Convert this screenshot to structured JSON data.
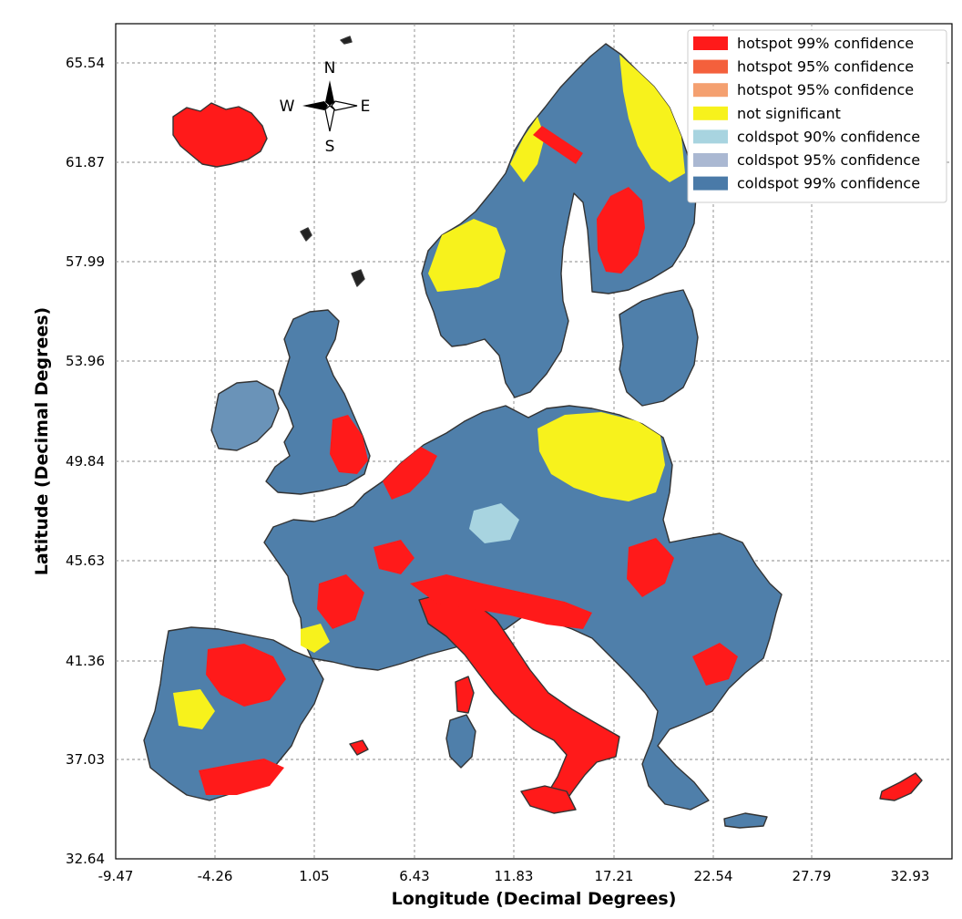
{
  "figure": {
    "xlabel": "Longitude (Decimal Degrees)",
    "ylabel": "Latitude (Decimal Degrees)",
    "x_ticks": [
      "-9.47",
      "-4.26",
      "1.05",
      "6.43",
      "11.83",
      "17.21",
      "22.54",
      "27.79",
      "32.93"
    ],
    "y_ticks": [
      "65.54",
      "61.87",
      "57.99",
      "53.96",
      "49.84",
      "45.63",
      "41.36",
      "37.03",
      "32.64"
    ]
  },
  "compass": {
    "north": "N",
    "south": "S",
    "east": "E",
    "west": "W",
    "icon": "compass-rose-icon"
  },
  "legend": {
    "position": "top-right",
    "items": [
      {
        "label": "hotspot 99% confidence",
        "color": "#ff1a1a"
      },
      {
        "label": "hotspot 95% confidence",
        "color": "#f4603c"
      },
      {
        "label": "hotspot 95% confidence",
        "color": "#f4a070"
      },
      {
        "label": "not significant",
        "color": "#f7f21c"
      },
      {
        "label": "coldspot 90% confidence",
        "color": "#a8d4e0"
      },
      {
        "label": "coldspot 95% confidence",
        "color": "#aab8d2"
      },
      {
        "label": "coldspot 99% confidence",
        "color": "#4a7aa8"
      }
    ]
  },
  "colors": {
    "land": "#4f7faa",
    "outline": "#333333",
    "grid": "#888888"
  }
}
